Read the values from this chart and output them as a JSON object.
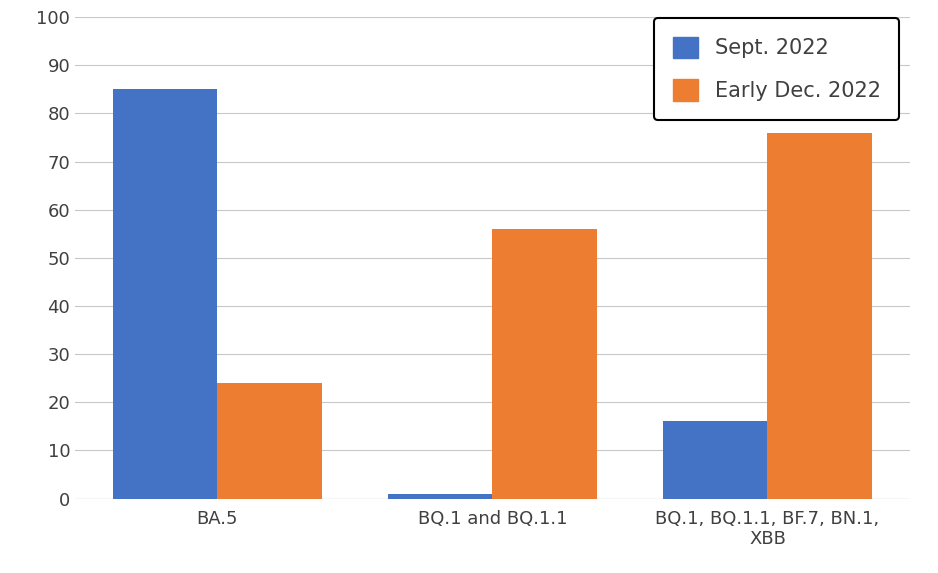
{
  "categories": [
    "BA.5",
    "BQ.1 and BQ.1.1",
    "BQ.1, BQ.1.1, BF.7, BN.1,\nXBB"
  ],
  "sept_2022": [
    85,
    1,
    16
  ],
  "dec_2022": [
    24,
    56,
    76
  ],
  "sept_color": "#4472C4",
  "dec_color": "#ED7D31",
  "legend_labels": [
    "Sept. 2022",
    "Early Dec. 2022"
  ],
  "ylim": [
    0,
    100
  ],
  "yticks": [
    0,
    10,
    20,
    30,
    40,
    50,
    60,
    70,
    80,
    90,
    100
  ],
  "background_color": "#FFFFFF",
  "grid_color": "#C8C8C8",
  "bar_width": 0.38,
  "tick_color": "#404040",
  "legend_fontsize": 15,
  "tick_fontsize": 13
}
